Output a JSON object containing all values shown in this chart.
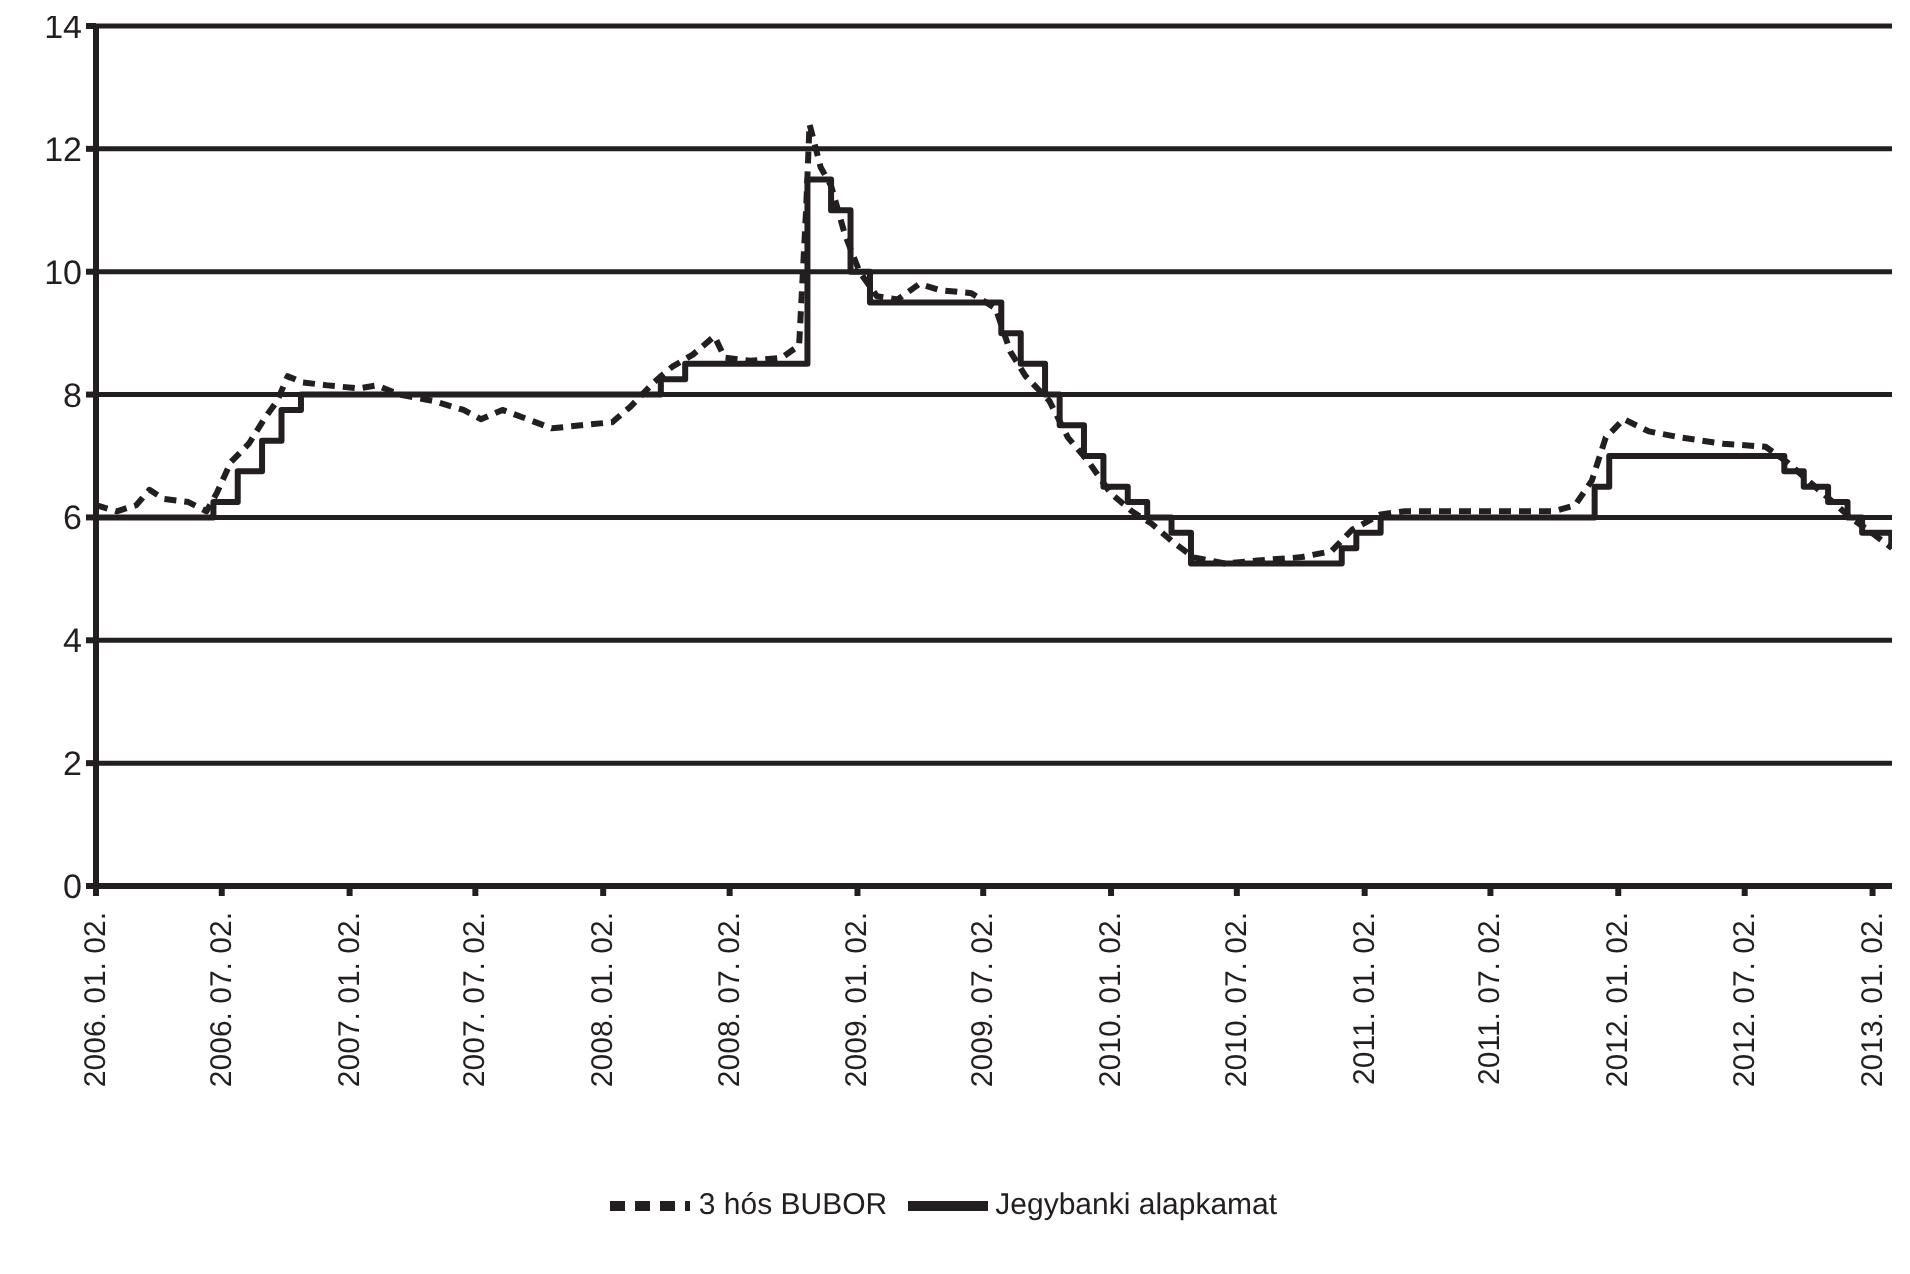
{
  "chart_data": {
    "type": "line",
    "xlim": [
      "2006-01-02",
      "2013-01-30"
    ],
    "xticks": [
      {
        "value": "2006-01-02",
        "label": "2006. 01. 02."
      },
      {
        "value": "2006-07-02",
        "label": "2006. 07. 02."
      },
      {
        "value": "2007-01-02",
        "label": "2007. 01. 02."
      },
      {
        "value": "2007-07-02",
        "label": "2007. 07. 02."
      },
      {
        "value": "2008-01-02",
        "label": "2008. 01. 02."
      },
      {
        "value": "2008-07-02",
        "label": "2008. 07. 02."
      },
      {
        "value": "2009-01-02",
        "label": "2009. 01. 02."
      },
      {
        "value": "2009-07-02",
        "label": "2009. 07. 02."
      },
      {
        "value": "2010-01-02",
        "label": "2010. 01. 02."
      },
      {
        "value": "2010-07-02",
        "label": "2010. 07. 02."
      },
      {
        "value": "2011-01-02",
        "label": "2011. 01. 02."
      },
      {
        "value": "2011-07-02",
        "label": "2011. 07. 02."
      },
      {
        "value": "2012-01-02",
        "label": "2012. 01. 02."
      },
      {
        "value": "2012-07-02",
        "label": "2012. 07. 02."
      },
      {
        "value": "2013-01-02",
        "label": "2013. 01. 02."
      }
    ],
    "ylim": [
      0,
      14
    ],
    "yticks": [
      0,
      2,
      4,
      6,
      8,
      10,
      12,
      14
    ],
    "grid": "y",
    "legend": "bottom",
    "series": [
      {
        "name": "3 hós BUBOR",
        "type": "line",
        "line_style": "dashed",
        "color": "#231f20",
        "x": [
          "2006-01-02",
          "2006-02-01",
          "2006-03-01",
          "2006-03-20",
          "2006-04-10",
          "2006-05-15",
          "2006-06-10",
          "2006-06-25",
          "2006-07-15",
          "2006-08-10",
          "2006-09-01",
          "2006-09-20",
          "2006-10-05",
          "2006-10-25",
          "2006-12-01",
          "2007-01-15",
          "2007-02-10",
          "2007-03-15",
          "2007-05-01",
          "2007-06-15",
          "2007-07-10",
          "2007-08-10",
          "2007-09-15",
          "2007-10-20",
          "2007-12-01",
          "2008-01-15",
          "2008-02-10",
          "2008-03-15",
          "2008-04-10",
          "2008-05-10",
          "2008-06-10",
          "2008-06-25",
          "2008-08-01",
          "2008-09-15",
          "2008-10-10",
          "2008-10-20",
          "2008-10-25",
          "2008-11-10",
          "2008-11-25",
          "2008-12-15",
          "2009-01-05",
          "2009-01-30",
          "2009-03-01",
          "2009-04-01",
          "2009-05-01",
          "2009-06-15",
          "2009-07-20",
          "2009-08-10",
          "2009-09-01",
          "2009-10-05",
          "2009-11-01",
          "2009-12-01",
          "2010-01-01",
          "2010-02-01",
          "2010-03-01",
          "2010-04-01",
          "2010-05-01",
          "2010-06-15",
          "2010-08-01",
          "2010-10-01",
          "2010-11-15",
          "2010-12-15",
          "2011-01-25",
          "2011-03-01",
          "2011-07-01",
          "2011-10-01",
          "2011-11-01",
          "2011-11-25",
          "2011-12-15",
          "2012-01-10",
          "2012-02-15",
          "2012-04-01",
          "2012-06-01",
          "2012-08-01",
          "2012-09-01",
          "2012-10-01",
          "2012-11-01",
          "2012-12-01",
          "2013-01-01",
          "2013-01-30"
        ],
        "values": [
          6.2,
          6.1,
          6.2,
          6.45,
          6.3,
          6.25,
          6.1,
          6.4,
          6.9,
          7.2,
          7.6,
          7.9,
          8.3,
          8.2,
          8.15,
          8.1,
          8.15,
          8.0,
          7.9,
          7.75,
          7.6,
          7.75,
          7.6,
          7.45,
          7.5,
          7.55,
          7.8,
          8.2,
          8.45,
          8.65,
          8.95,
          8.6,
          8.55,
          8.6,
          8.8,
          11.0,
          12.4,
          11.7,
          11.4,
          10.6,
          10.0,
          9.6,
          9.55,
          9.8,
          9.7,
          9.65,
          9.4,
          8.7,
          8.3,
          7.9,
          7.3,
          6.9,
          6.4,
          6.1,
          5.9,
          5.6,
          5.35,
          5.25,
          5.3,
          5.35,
          5.45,
          5.8,
          6.05,
          6.1,
          6.1,
          6.1,
          6.2,
          6.6,
          7.3,
          7.6,
          7.4,
          7.3,
          7.2,
          7.15,
          6.9,
          6.6,
          6.3,
          6.0,
          5.75,
          5.5
        ]
      },
      {
        "name": "Jegybanki alapkamat",
        "type": "step",
        "line_style": "solid",
        "color": "#231f20",
        "x": [
          "2006-01-02",
          "2006-06-20",
          "2006-07-25",
          "2006-08-29",
          "2006-09-26",
          "2006-10-24",
          "2008-03-25",
          "2008-04-29",
          "2008-10-22",
          "2008-11-25",
          "2008-12-23",
          "2009-01-20",
          "2009-07-28",
          "2009-08-25",
          "2009-09-29",
          "2009-10-20",
          "2009-11-24",
          "2009-12-22",
          "2010-01-26",
          "2010-02-23",
          "2010-03-30",
          "2010-04-27",
          "2010-11-30",
          "2010-12-21",
          "2011-01-25",
          "2011-11-29",
          "2011-12-20",
          "2012-08-28",
          "2012-09-25",
          "2012-10-30",
          "2012-11-27",
          "2012-12-18",
          "2013-01-29"
        ],
        "values": [
          6.0,
          6.25,
          6.75,
          7.25,
          7.75,
          8.0,
          8.25,
          8.5,
          11.5,
          11.0,
          10.0,
          9.5,
          9.0,
          8.5,
          8.0,
          7.5,
          7.0,
          6.5,
          6.25,
          6.0,
          5.75,
          5.25,
          5.5,
          5.75,
          6.0,
          6.5,
          7.0,
          6.75,
          6.5,
          6.25,
          6.0,
          5.75,
          5.5
        ]
      }
    ]
  }
}
